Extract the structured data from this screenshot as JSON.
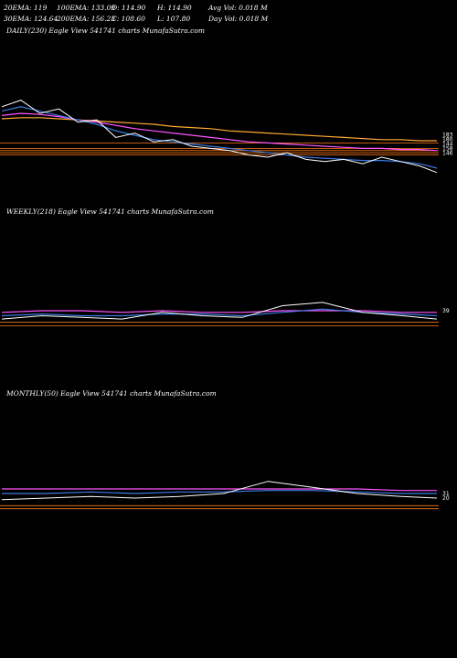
{
  "header": {
    "row1": [
      "20EMA: 119",
      "100EMA: 133.09",
      "O: 114.90",
      "H: 114.90",
      "Avg Vol: 0.018  M"
    ],
    "row2": [
      "30EMA: 124.64",
      "200EMA: 156.23",
      "C: 108.60",
      "L: 107.80",
      "Day Vol: 0.018  M"
    ]
  },
  "colors": {
    "bg": "#000000",
    "price": "#ffffff",
    "ema_short": "#3a7be0",
    "ema_long": "#ff55ff",
    "ema_mid": "#ffaa33",
    "level": "#ff7a1a"
  },
  "chart_data": [
    {
      "type": "line",
      "title": "DAILY(230) Eagle  View  541741 charts MunafaSutra.com",
      "x": [
        0,
        10,
        20,
        30,
        40,
        50,
        60,
        70,
        80,
        90,
        100,
        110,
        120,
        130,
        140,
        150,
        160,
        170,
        180,
        190,
        200,
        210,
        220,
        229
      ],
      "series": [
        {
          "values": [
            186,
            192,
            180,
            184,
            172,
            174,
            158,
            162,
            154,
            156,
            150,
            148,
            146,
            142,
            140,
            144,
            138,
            136,
            138,
            134,
            140,
            136,
            132,
            126
          ]
        },
        {
          "values": [
            182,
            186,
            182,
            178,
            174,
            170,
            164,
            160,
            156,
            154,
            152,
            150,
            148,
            146,
            144,
            142,
            140,
            139,
            138,
            137,
            137,
            136,
            134,
            130
          ]
        },
        {
          "values": [
            178,
            180,
            179,
            177,
            174,
            172,
            169,
            166,
            164,
            162,
            160,
            158,
            156,
            154,
            153,
            152,
            151,
            150,
            149,
            148,
            148,
            147,
            147,
            146
          ]
        },
        {
          "values": [
            175,
            176,
            176,
            175,
            174,
            173,
            172,
            171,
            170,
            168,
            167,
            166,
            164,
            163,
            162,
            161,
            160,
            159,
            158,
            157,
            156,
            156,
            155,
            155
          ]
        }
      ],
      "levels": [
        153,
        148,
        146,
        144,
        142
      ],
      "right_labels": [
        "183",
        "180",
        "144",
        "158",
        "146"
      ]
    },
    {
      "type": "line",
      "title": "WEEKLY(218) Eagle  View  541741 charts MunafaSutra.com",
      "x": [
        0,
        20,
        40,
        60,
        80,
        100,
        120,
        140,
        160,
        180,
        200,
        217
      ],
      "series": [
        {
          "values": [
            40,
            42,
            41,
            40,
            44,
            42,
            41,
            48,
            50,
            44,
            42,
            40
          ]
        },
        {
          "values": [
            42,
            43,
            42,
            42,
            43,
            43,
            42,
            44,
            46,
            44,
            43,
            42
          ]
        },
        {
          "values": [
            44,
            45,
            45,
            44,
            45,
            44,
            44,
            45,
            45,
            45,
            44,
            44
          ]
        }
      ],
      "levels": [
        38,
        36
      ],
      "right_labels": [
        "39"
      ]
    },
    {
      "type": "line",
      "title": "MONTHLY(50) Eagle  View  541741 charts MunafaSutra.com",
      "x": [
        0,
        5,
        10,
        15,
        20,
        25,
        30,
        35,
        40,
        45,
        49
      ],
      "series": [
        {
          "values": [
            40,
            41,
            42,
            41,
            42,
            44,
            52,
            48,
            44,
            42,
            41
          ]
        },
        {
          "values": [
            44,
            44,
            45,
            44,
            45,
            45,
            46,
            46,
            45,
            44,
            44
          ]
        },
        {
          "values": [
            47,
            47,
            47,
            47,
            47,
            47,
            47,
            47,
            47,
            46,
            46
          ]
        }
      ],
      "levels": [
        36,
        34
      ],
      "right_labels": [
        "31",
        "20"
      ]
    }
  ]
}
